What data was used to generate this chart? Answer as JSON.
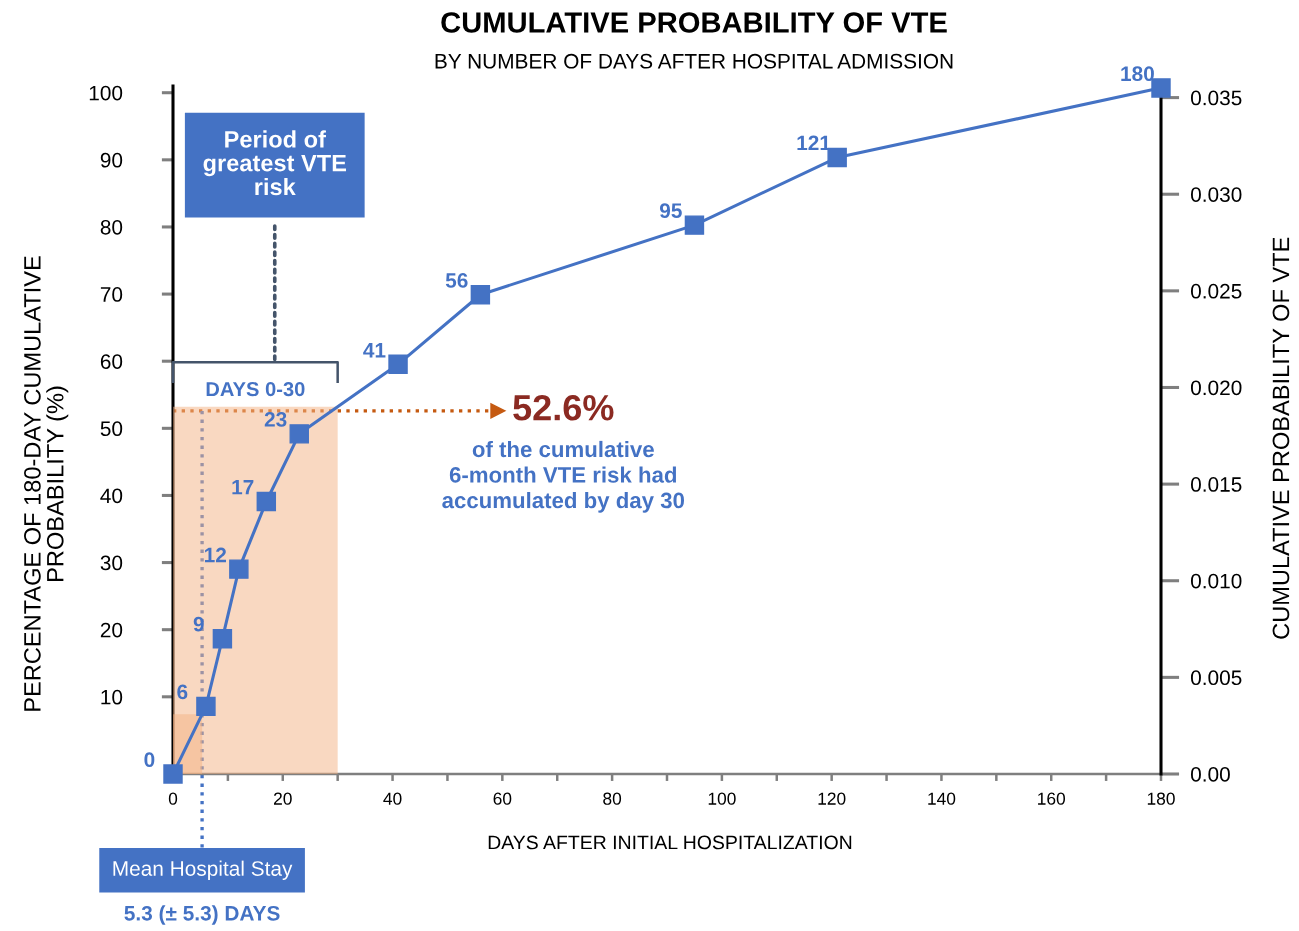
{
  "chart_data": {
    "type": "line",
    "title": "CUMULATIVE PROBABILITY OF VTE",
    "subtitle": "BY NUMBER OF DAYS AFTER HOSPITAL ADMISSION",
    "xlabel": "DAYS AFTER INITIAL HOSPITALIZATION",
    "ylabel": "PERCENTAGE OF 180-DAY CUMULATIVE\nPROBABILITY (%)",
    "y2label": "CUMULATIVE PROBABILITY OF VTE",
    "x": [
      0,
      6,
      9,
      12,
      17,
      23,
      41,
      56,
      95,
      121,
      180
    ],
    "series": [
      {
        "color": "#4472c4",
        "axis": "y2",
        "values": [
          0,
          0.0035,
          0.007,
          0.0106,
          0.0141,
          0.0176,
          0.0212,
          0.0248,
          0.0284,
          0.0319,
          0.0355
        ]
      }
    ],
    "marker": "square",
    "line_style": "solid",
    "xlim": [
      0,
      180
    ],
    "xticks": [
      0,
      {
        "value": 10,
        "label": null
      },
      20,
      {
        "value": 30,
        "label": null
      },
      40,
      {
        "value": 50,
        "label": null
      },
      60,
      {
        "value": 70,
        "label": null
      },
      80,
      {
        "value": 90,
        "label": null
      },
      100,
      {
        "value": 110,
        "label": null
      },
      120,
      {
        "value": 130,
        "label": null
      },
      140,
      {
        "value": 150,
        "label": null
      },
      160,
      {
        "value": 170,
        "label": null
      },
      180
    ],
    "ylim": [
      -1.5,
      101
    ],
    "yticks": [
      10,
      20,
      30,
      40,
      50,
      60,
      70,
      80,
      90,
      100
    ],
    "y2lim": [
      0,
      0.0356
    ],
    "y2ticks": [
      {
        "value": 0,
        "label": "0.00"
      },
      0.005,
      {
        "value": 0.01,
        "label": "0.010"
      },
      0.015,
      {
        "value": 0.02,
        "label": "0.020"
      },
      0.025,
      {
        "value": 0.03,
        "label": "0.030"
      },
      0.035
    ],
    "bands": [
      {
        "axis": "x",
        "from": 0,
        "to": 30,
        "label": "DAYS 0-30",
        "color": "#f4b183"
      },
      {
        "axis": "x",
        "from": 0,
        "to": 5.3,
        "color": "#f4b183"
      }
    ],
    "ref_lines": [
      {
        "axis": "y",
        "value": 52.6,
        "label": "52.6%",
        "color": "#c55a11",
        "line_style": "dotted"
      },
      {
        "axis": "x",
        "value": 5.3,
        "label": "Mean Hospital Stay",
        "color": "#4472c4",
        "line_style": "dotted"
      }
    ],
    "annotations": [
      "Period of\ngreatest VTE\nrisk",
      "of the cumulative\n6-month VTE risk had\naccumulated by day 30",
      "5.3 (± 5.3) DAYS",
      {
        "text": "0",
        "x": 0,
        "y": -1.5
      },
      {
        "text": "6",
        "x": 6,
        "y": 8.6
      },
      {
        "text": "9",
        "x": 9,
        "y": 18.7
      },
      {
        "text": "12",
        "x": 12,
        "y": 29.0
      },
      {
        "text": "17",
        "x": 17,
        "y": 39.1
      },
      {
        "text": "23",
        "x": 23,
        "y": 49.2
      },
      {
        "text": "41",
        "x": 41,
        "y": 59.5
      },
      {
        "text": "56",
        "x": 56,
        "y": 69.9
      },
      {
        "text": "95",
        "x": 95,
        "y": 80.3
      },
      {
        "text": "121",
        "x": 121,
        "y": 90.4
      },
      {
        "text": "180",
        "x": 180,
        "y": 100.7
      }
    ]
  }
}
